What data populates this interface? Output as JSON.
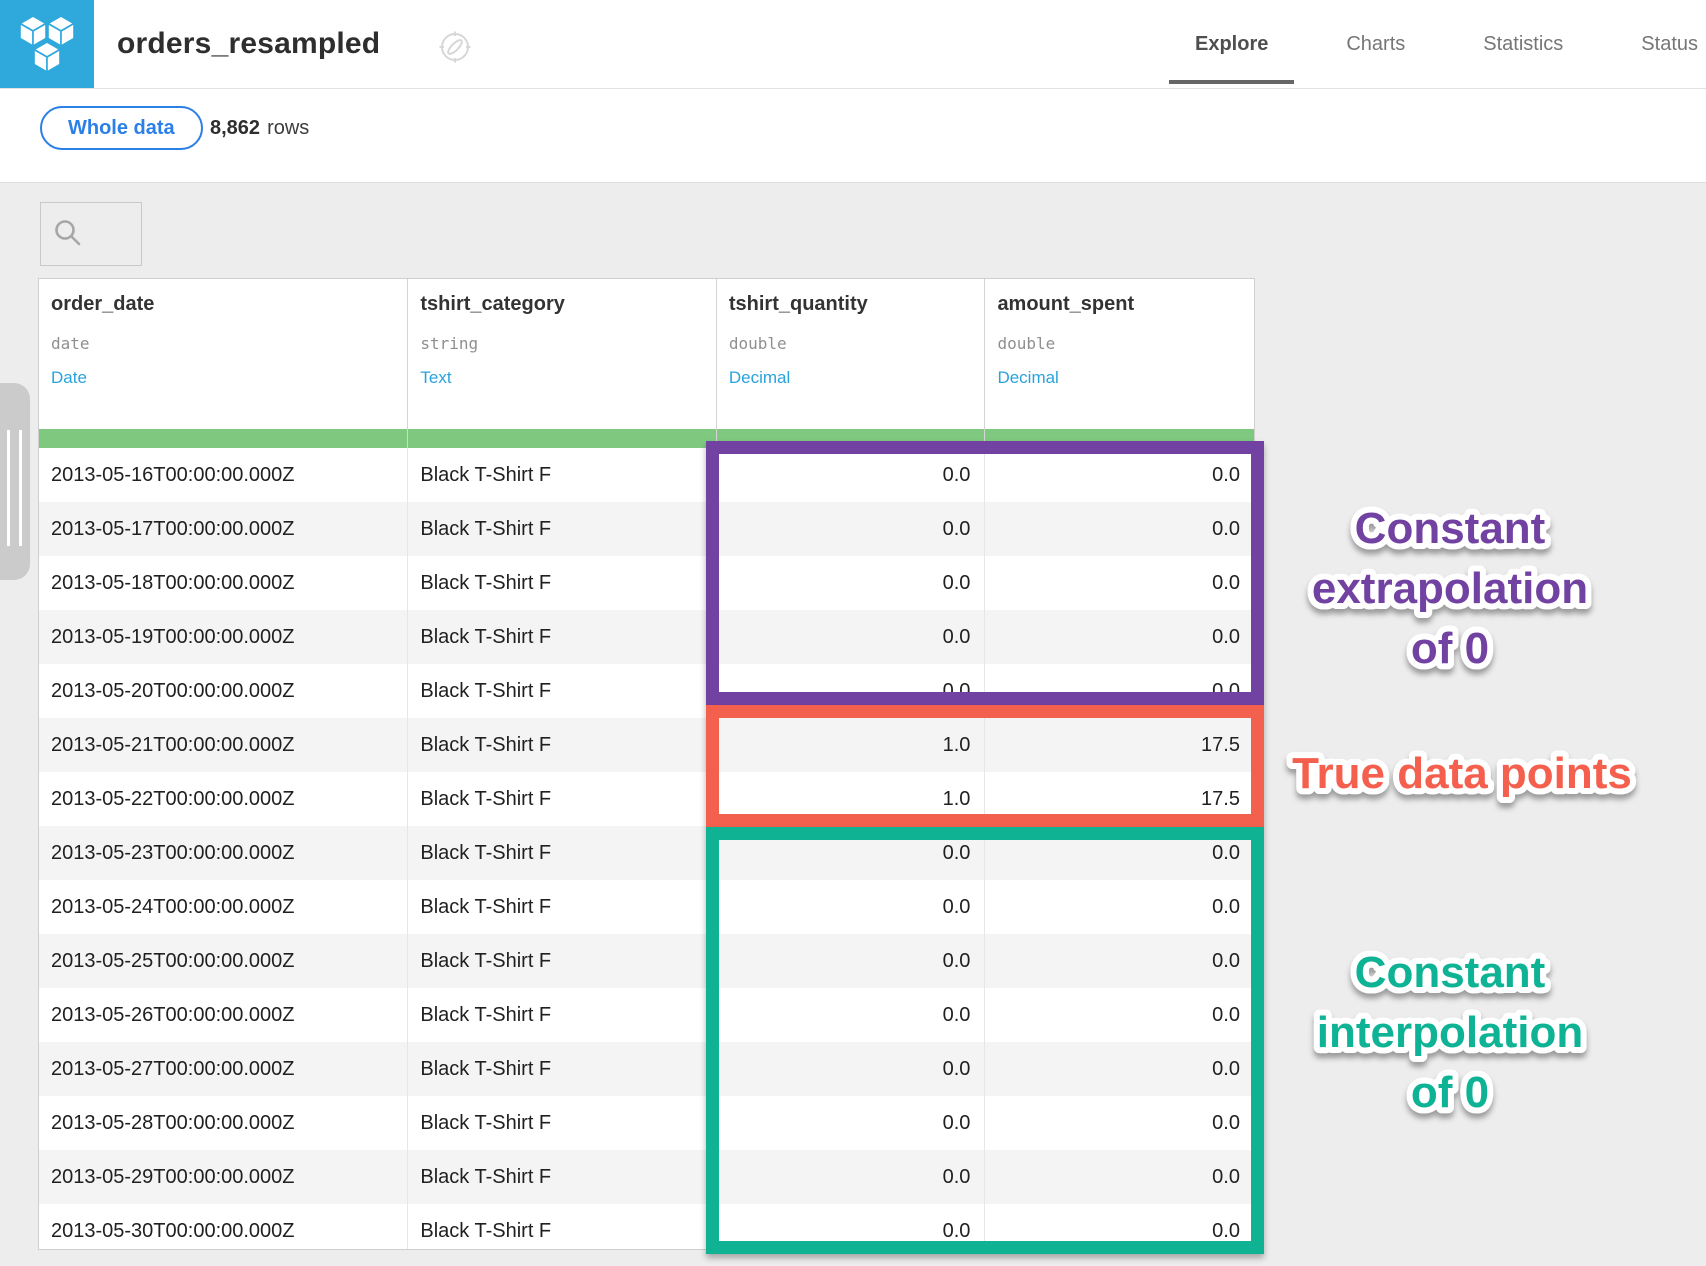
{
  "header": {
    "title": "orders_resampled",
    "tabs": [
      {
        "label": "Explore",
        "active": true
      },
      {
        "label": "Charts",
        "active": false
      },
      {
        "label": "Statistics",
        "active": false
      },
      {
        "label": "Status",
        "active": false
      }
    ]
  },
  "subheader": {
    "sample_button_label": "Whole data",
    "row_count": "8,862",
    "rows_label": "rows"
  },
  "search": {
    "value": "",
    "placeholder": ""
  },
  "table": {
    "columns": [
      {
        "name": "order_date",
        "storage_type": "date",
        "meaning": "Date"
      },
      {
        "name": "tshirt_category",
        "storage_type": "string",
        "meaning": "Text"
      },
      {
        "name": "tshirt_quantity",
        "storage_type": "double",
        "meaning": "Decimal"
      },
      {
        "name": "amount_spent",
        "storage_type": "double",
        "meaning": "Decimal"
      }
    ],
    "rows": [
      [
        "2013-05-16T00:00:00.000Z",
        "Black T-Shirt F",
        "0.0",
        "0.0"
      ],
      [
        "2013-05-17T00:00:00.000Z",
        "Black T-Shirt F",
        "0.0",
        "0.0"
      ],
      [
        "2013-05-18T00:00:00.000Z",
        "Black T-Shirt F",
        "0.0",
        "0.0"
      ],
      [
        "2013-05-19T00:00:00.000Z",
        "Black T-Shirt F",
        "0.0",
        "0.0"
      ],
      [
        "2013-05-20T00:00:00.000Z",
        "Black T-Shirt F",
        "0.0",
        "0.0"
      ],
      [
        "2013-05-21T00:00:00.000Z",
        "Black T-Shirt F",
        "1.0",
        "17.5"
      ],
      [
        "2013-05-22T00:00:00.000Z",
        "Black T-Shirt F",
        "1.0",
        "17.5"
      ],
      [
        "2013-05-23T00:00:00.000Z",
        "Black T-Shirt F",
        "0.0",
        "0.0"
      ],
      [
        "2013-05-24T00:00:00.000Z",
        "Black T-Shirt F",
        "0.0",
        "0.0"
      ],
      [
        "2013-05-25T00:00:00.000Z",
        "Black T-Shirt F",
        "0.0",
        "0.0"
      ],
      [
        "2013-05-26T00:00:00.000Z",
        "Black T-Shirt F",
        "0.0",
        "0.0"
      ],
      [
        "2013-05-27T00:00:00.000Z",
        "Black T-Shirt F",
        "0.0",
        "0.0"
      ],
      [
        "2013-05-28T00:00:00.000Z",
        "Black T-Shirt F",
        "0.0",
        "0.0"
      ],
      [
        "2013-05-29T00:00:00.000Z",
        "Black T-Shirt F",
        "0.0",
        "0.0"
      ],
      [
        "2013-05-30T00:00:00.000Z",
        "Black T-Shirt F",
        "0.0",
        "0.0"
      ]
    ]
  },
  "annotations": {
    "extrapolation": {
      "lines": [
        "Constant",
        "extrapolation",
        "of 0"
      ],
      "color": "#7142a1"
    },
    "true_points": {
      "lines": [
        "True data points"
      ],
      "color": "#f4604e"
    },
    "interpolation": {
      "lines": [
        "Constant",
        "interpolation",
        "of 0"
      ],
      "color": "#0fb394"
    }
  },
  "colors": {
    "brand_blue": "#2fa9dc",
    "meaning_link_blue": "#29a3dc",
    "sample_pill_blue": "#2a7fe8",
    "validity_green": "#7ec97f",
    "extrapolation_purple": "#7142a1",
    "true_points_red": "#f4604e",
    "interpolation_teal": "#0fb394"
  },
  "icons": {
    "logo": "dataset-cubes-icon",
    "title_suffix": "compass-icon",
    "search": "search-icon",
    "handle": "panel-drag-handle"
  }
}
